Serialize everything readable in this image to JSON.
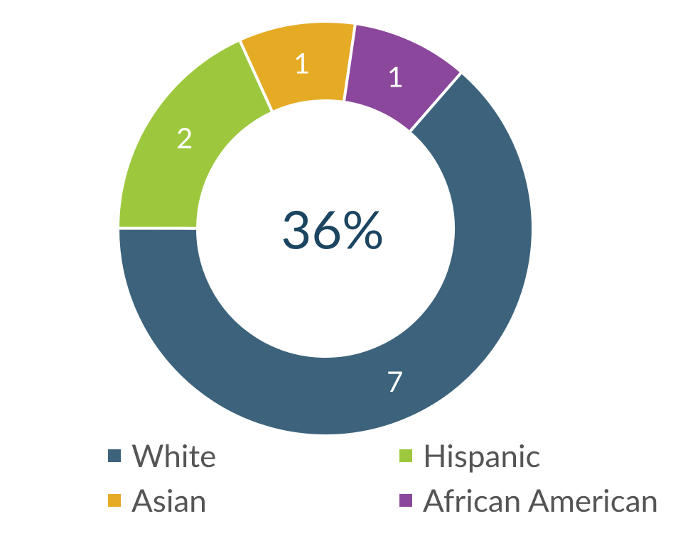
{
  "chart_data": {
    "type": "donut",
    "center_text": "36%",
    "categories": [
      "White",
      "Hispanic",
      "Asian",
      "African American"
    ],
    "values": [
      7,
      2,
      1,
      1
    ],
    "colors": [
      "#3d637c",
      "#9dc83e",
      "#e6ab25",
      "#8b479b"
    ]
  }
}
